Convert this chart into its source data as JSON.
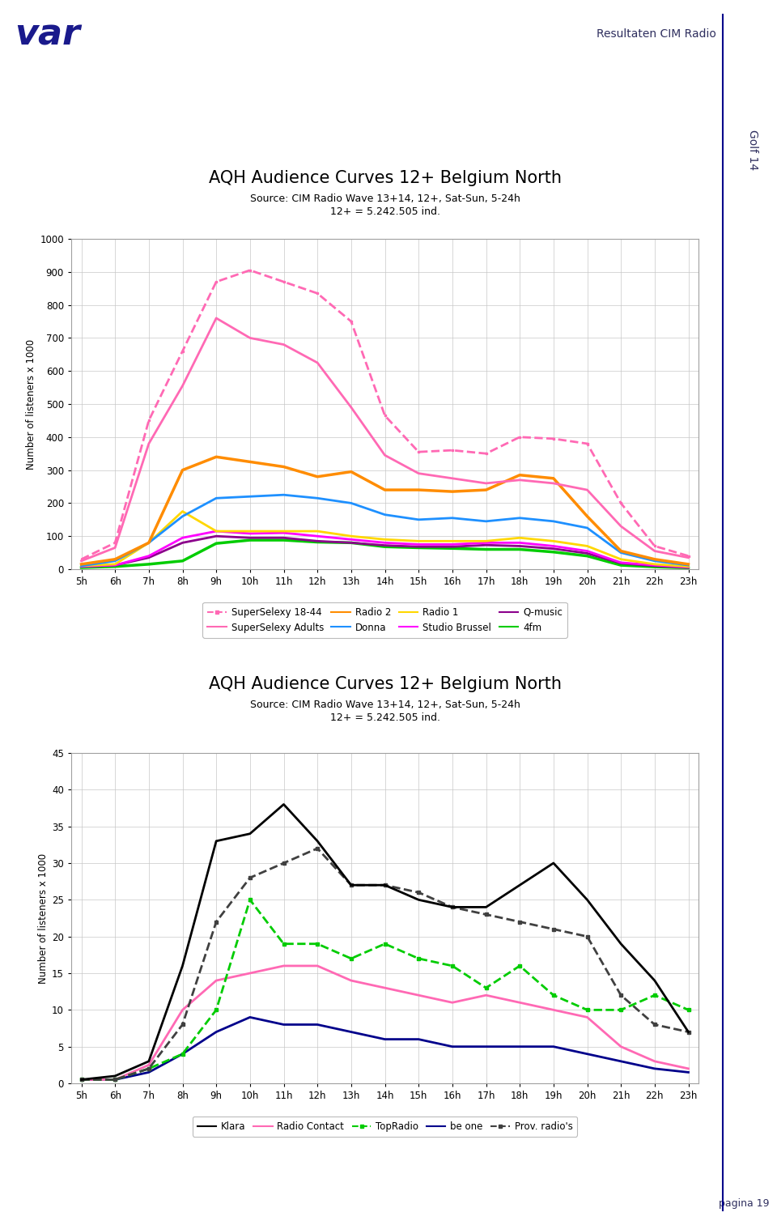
{
  "title1": "AQH Audience Curves 12+ Belgium North",
  "subtitle1a": "Source: CIM Radio Wave 13+14, 12+, Sat-Sun, 5-24h",
  "subtitle1b": "12+ = 5.242.505 ind.",
  "title2": "AQH Audience Curves 12+ Belgium North",
  "subtitle2a": "Source: CIM Radio Wave 13+14, 12+, Sat-Sun, 5-24h",
  "subtitle2b": "12+ = 5.242.505 ind.",
  "header_text": "Resultaten CIM Radio",
  "side_text": "Golf 14",
  "page_text": "pagina 19",
  "hours": [
    5,
    6,
    7,
    8,
    9,
    10,
    11,
    12,
    13,
    14,
    15,
    16,
    17,
    18,
    19,
    20,
    21,
    22,
    23
  ],
  "chart1": {
    "SuperSelexy_18_44": [
      30,
      80,
      450,
      660,
      870,
      905,
      870,
      835,
      750,
      465,
      355,
      360,
      350,
      400,
      395,
      380,
      200,
      70,
      40
    ],
    "SuperSelexy_Adults": [
      25,
      65,
      380,
      555,
      760,
      700,
      680,
      625,
      490,
      345,
      290,
      275,
      260,
      270,
      260,
      240,
      130,
      55,
      35
    ],
    "Radio2": [
      15,
      30,
      80,
      300,
      340,
      325,
      310,
      280,
      295,
      240,
      240,
      235,
      240,
      285,
      275,
      160,
      55,
      30,
      15
    ],
    "Donna": [
      10,
      25,
      80,
      160,
      215,
      220,
      225,
      215,
      200,
      165,
      150,
      155,
      145,
      155,
      145,
      125,
      50,
      25,
      12
    ],
    "Radio1": [
      10,
      15,
      80,
      175,
      115,
      115,
      115,
      115,
      100,
      90,
      85,
      85,
      85,
      95,
      85,
      70,
      30,
      15,
      8
    ],
    "Studio_Brussel": [
      8,
      12,
      40,
      95,
      115,
      108,
      110,
      100,
      90,
      80,
      75,
      75,
      80,
      80,
      70,
      55,
      20,
      12,
      6
    ],
    "Q_music": [
      8,
      12,
      35,
      80,
      100,
      95,
      95,
      85,
      80,
      72,
      68,
      68,
      73,
      70,
      62,
      48,
      18,
      10,
      5
    ],
    "4fm": [
      5,
      8,
      15,
      25,
      78,
      88,
      88,
      82,
      80,
      68,
      65,
      63,
      60,
      60,
      52,
      40,
      12,
      7,
      4
    ]
  },
  "chart1_colors": {
    "SuperSelexy_18_44": "#FF69B4",
    "SuperSelexy_Adults": "#FF69B4",
    "Radio2": "#FF8C00",
    "Donna": "#1E90FF",
    "Radio1": "#FFD700",
    "Studio_Brussel": "#FF00FF",
    "Q_music": "#8B008B",
    "4fm": "#00CC00"
  },
  "chart1_linestyles": {
    "SuperSelexy_18_44": "--",
    "SuperSelexy_Adults": "-",
    "Radio2": "-",
    "Donna": "-",
    "Radio1": "-",
    "Studio_Brussel": "-",
    "Q_music": "-",
    "4fm": "-"
  },
  "chart1_linewidths": {
    "SuperSelexy_18_44": 2.0,
    "SuperSelexy_Adults": 2.0,
    "Radio2": 2.5,
    "Donna": 2.0,
    "Radio1": 2.0,
    "Studio_Brussel": 2.0,
    "Q_music": 2.0,
    "4fm": 2.5
  },
  "chart2": {
    "Klara": [
      0.5,
      1.0,
      3.0,
      16,
      33,
      34,
      38,
      33,
      27,
      27,
      25,
      24,
      24,
      27,
      30,
      25,
      19,
      14,
      7
    ],
    "Radio_Contact": [
      0.5,
      0.5,
      2.5,
      10,
      14,
      15,
      16,
      16,
      14,
      13,
      12,
      11,
      12,
      11,
      10,
      9,
      5,
      3,
      2
    ],
    "TopRadio": [
      0.5,
      0.5,
      2.0,
      4,
      10,
      25,
      19,
      19,
      17,
      19,
      17,
      16,
      13,
      16,
      12,
      10,
      10,
      12,
      10
    ],
    "be_one": [
      0.5,
      0.5,
      1.5,
      4,
      7,
      9,
      8,
      8,
      7,
      6,
      6,
      5,
      5,
      5,
      5,
      4,
      3,
      2,
      1.5
    ],
    "Prov_radios": [
      0.5,
      0.5,
      2.0,
      8,
      22,
      28,
      30,
      32,
      27,
      27,
      26,
      24,
      23,
      22,
      21,
      20,
      12,
      8,
      7
    ]
  },
  "chart2_colors": {
    "Klara": "#000000",
    "Radio_Contact": "#FF69B4",
    "TopRadio": "#00CC00",
    "be_one": "#00008B",
    "Prov_radios": "#404040"
  },
  "chart2_linestyles": {
    "Klara": "-",
    "Radio_Contact": "-",
    "TopRadio": "--",
    "be_one": "-",
    "Prov_radios": "--"
  },
  "chart2_markers": {
    "Klara": null,
    "Radio_Contact": null,
    "TopRadio": "s",
    "be_one": null,
    "Prov_radios": "s"
  },
  "ylabel": "Number of listeners x 1000",
  "chart1_ylim": [
    0,
    1000
  ],
  "chart1_yticks": [
    0,
    100,
    200,
    300,
    400,
    500,
    600,
    700,
    800,
    900,
    1000
  ],
  "chart2_ylim": [
    0,
    45
  ],
  "chart2_yticks": [
    0,
    5,
    10,
    15,
    20,
    25,
    30,
    35,
    40,
    45
  ],
  "bg_color": "#FFFFFF",
  "grid_color": "#C8C8C8",
  "border_color": "#A0A0A0",
  "legend1": [
    {
      "label": "SuperSelexy 18-44",
      "color": "#FF69B4",
      "ls": "--",
      "lw": 1.5,
      "marker": "s",
      "ms": 3
    },
    {
      "label": "SuperSelexy Adults",
      "color": "#FF69B4",
      "ls": "-",
      "lw": 1.5,
      "marker": null,
      "ms": 0
    },
    {
      "label": "Radio 2",
      "color": "#FF8C00",
      "ls": "-",
      "lw": 1.5,
      "marker": null,
      "ms": 0
    },
    {
      "label": "Donna",
      "color": "#1E90FF",
      "ls": "-",
      "lw": 1.5,
      "marker": null,
      "ms": 0
    },
    {
      "label": "Radio 1",
      "color": "#FFD700",
      "ls": "-",
      "lw": 1.5,
      "marker": null,
      "ms": 0
    },
    {
      "label": "Studio Brussel",
      "color": "#FF00FF",
      "ls": "-",
      "lw": 1.5,
      "marker": null,
      "ms": 0
    },
    {
      "label": "Q-music",
      "color": "#8B008B",
      "ls": "-",
      "lw": 1.5,
      "marker": null,
      "ms": 0
    },
    {
      "label": "4fm",
      "color": "#00CC00",
      "ls": "-",
      "lw": 1.5,
      "marker": null,
      "ms": 0
    }
  ],
  "legend2": [
    {
      "label": "Klara",
      "color": "#000000",
      "ls": "-",
      "lw": 1.5,
      "marker": null,
      "ms": 0
    },
    {
      "label": "Radio Contact",
      "color": "#FF69B4",
      "ls": "-",
      "lw": 1.5,
      "marker": null,
      "ms": 0
    },
    {
      "label": "TopRadio",
      "color": "#00CC00",
      "ls": "--",
      "lw": 1.5,
      "marker": "s",
      "ms": 3
    },
    {
      "label": "be one",
      "color": "#00008B",
      "ls": "-",
      "lw": 1.5,
      "marker": null,
      "ms": 0
    },
    {
      "label": "Prov. radio's",
      "color": "#404040",
      "ls": "--",
      "lw": 1.5,
      "marker": "s",
      "ms": 3
    }
  ]
}
